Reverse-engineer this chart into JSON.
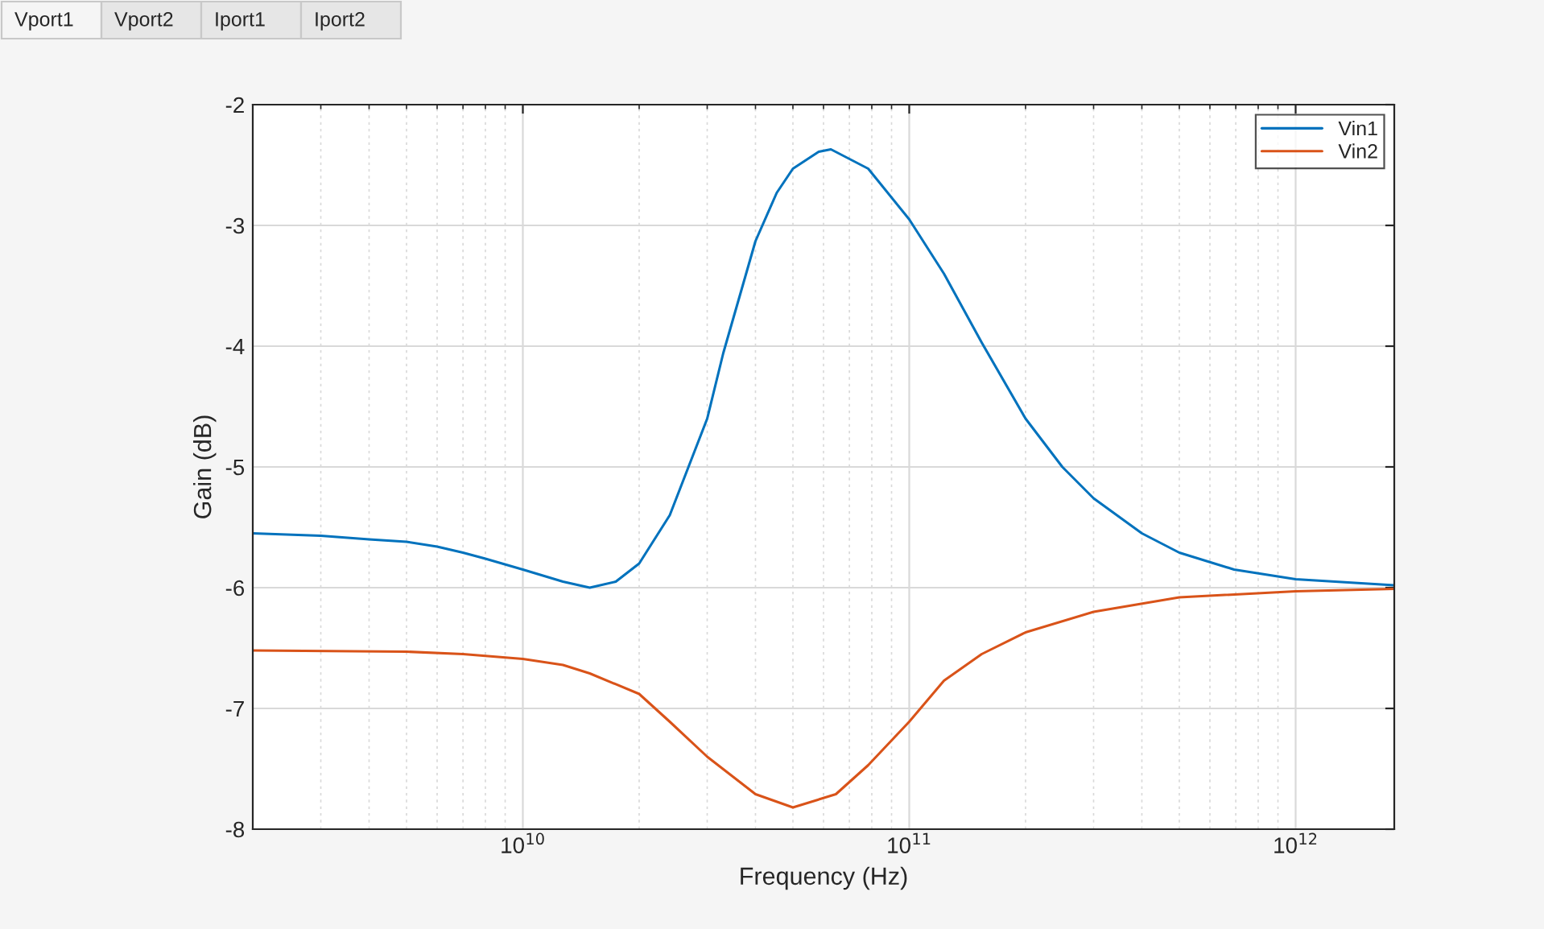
{
  "chart_data": {
    "type": "line",
    "xlabel": "Frequency (Hz)",
    "ylabel": "Gain (dB)",
    "annotations": [
      "Vport1",
      "Vport2",
      "Iport1",
      "Iport2"
    ],
    "log": "x",
    "xlim": [
      2000000000.0,
      1800000000000.0
    ],
    "xticks": [
      {
        "value": 10000000000.0,
        "label": "10$^{10}$"
      },
      {
        "value": 100000000000.0,
        "label": "10$^{11}$"
      },
      {
        "value": 1000000000000.0,
        "label": "10$^{12}$"
      }
    ],
    "ylim": [
      -8,
      -2
    ],
    "yticks": [
      -8,
      -7,
      -6,
      -5,
      -4,
      -3,
      -2
    ],
    "grid": true,
    "legend": "top right",
    "line_style": "solid",
    "marker": "none",
    "series": [
      {
        "name": "Vin1",
        "color": "#0072bd",
        "x": [
          2000000000.0,
          3000000000.0,
          4000000000.0,
          5000000000.0,
          6000000000.0,
          7000000000.0,
          8000000000.0,
          10000000000.0,
          12700000000.0,
          14900000000.0,
          17400000000.0,
          20000000000.0,
          24000000000.0,
          30000000000.0,
          33000000000.0,
          40000000000.0,
          45400000000.0,
          50000000000.0,
          58300000000.0,
          62700000000.0,
          78300000000.0,
          100000000000.0,
          123000000000.0,
          154000000000.0,
          200000000000.0,
          249000000000.0,
          300000000000.0,
          400000000000.0,
          500000000000.0,
          693000000000.0,
          1000000000000.0,
          1800000000000.0
        ],
        "values": [
          -5.55,
          -5.57,
          -5.6,
          -5.62,
          -5.66,
          -5.71,
          -5.76,
          -5.85,
          -5.95,
          -6.0,
          -5.95,
          -5.8,
          -5.4,
          -4.6,
          -4.06,
          -3.13,
          -2.73,
          -2.53,
          -2.39,
          -2.37,
          -2.53,
          -2.95,
          -3.4,
          -3.97,
          -4.6,
          -5.0,
          -5.26,
          -5.55,
          -5.71,
          -5.85,
          -5.93,
          -5.98
        ]
      },
      {
        "name": "Vin2",
        "color": "#d95319",
        "x": [
          2000000000.0,
          5000000000.0,
          7000000000.0,
          10000000000.0,
          12700000000.0,
          14900000000.0,
          20000000000.0,
          24000000000.0,
          30000000000.0,
          40000000000.0,
          50000000000.0,
          64600000000.0,
          78300000000.0,
          100000000000.0,
          123000000000.0,
          154000000000.0,
          200000000000.0,
          300000000000.0,
          500000000000.0,
          1000000000000.0,
          1800000000000.0
        ],
        "values": [
          -6.52,
          -6.53,
          -6.55,
          -6.59,
          -6.64,
          -6.71,
          -6.88,
          -7.11,
          -7.4,
          -7.71,
          -7.82,
          -7.71,
          -7.47,
          -7.11,
          -6.77,
          -6.55,
          -6.37,
          -6.2,
          -6.08,
          -6.03,
          -6.01
        ]
      }
    ]
  }
}
